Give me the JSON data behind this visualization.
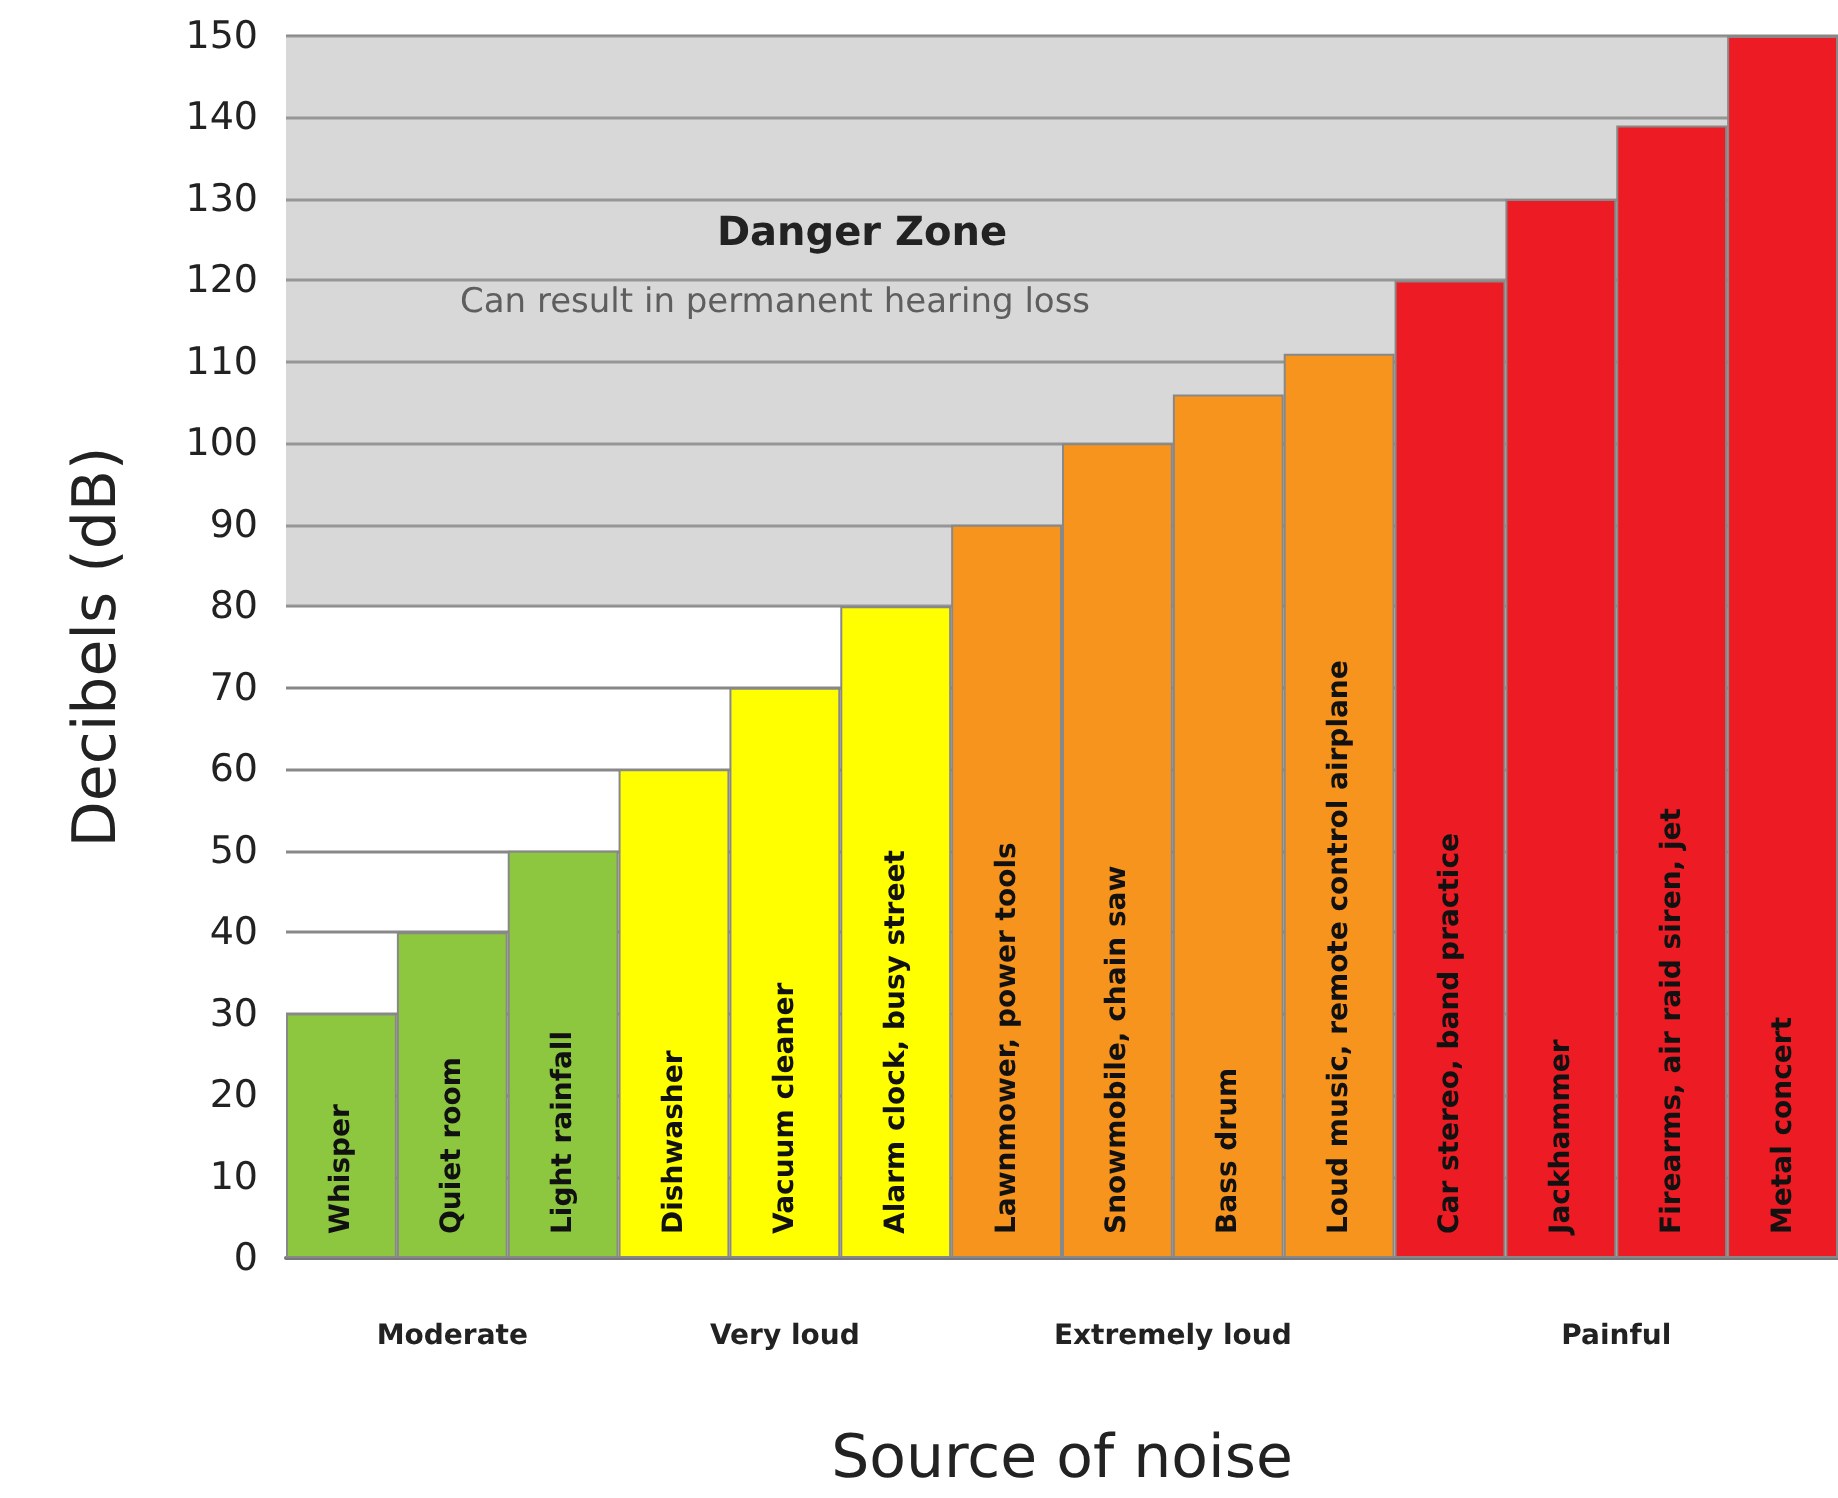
{
  "chart_data": {
    "type": "bar",
    "xlabel": "Source of noise",
    "ylabel": "Decibels (dB)",
    "categories": [
      "Whisper",
      "Quiet room",
      "Light rainfall",
      "Dishwasher",
      "Vacuum cleaner",
      "Alarm clock, busy street",
      "Lawnmower, power tools",
      "Snowmobile, chain saw",
      "Bass drum",
      "Loud music, remote control airplane",
      "Car stereo, band practice",
      "Jackhammer",
      "Firearms, air raid siren, jet",
      "Metal concert"
    ],
    "values": [
      30,
      40,
      50,
      60,
      70,
      80,
      90,
      100,
      106,
      111,
      120,
      130,
      139,
      150
    ],
    "colors": [
      "#8dc63f",
      "#8dc63f",
      "#8dc63f",
      "#ffff00",
      "#ffff00",
      "#ffff00",
      "#f7941d",
      "#f7941d",
      "#f7941d",
      "#f7941d",
      "#ed1c24",
      "#ed1c24",
      "#ed1c24",
      "#ed1c24"
    ],
    "ylim": [
      0,
      150
    ],
    "yticks": [
      0,
      10,
      20,
      30,
      40,
      50,
      60,
      70,
      80,
      90,
      100,
      110,
      120,
      130,
      140,
      150
    ],
    "grid": "y",
    "tick_labels": "y",
    "bands": [
      {
        "axis": "y",
        "from": 80,
        "to": 150,
        "label": "Danger Zone",
        "color": "#a8a8a8"
      }
    ],
    "annotations": [
      "Can result in permanent hearing loss",
      "Moderate",
      "Very loud",
      "Extremely loud",
      "Painful"
    ]
  }
}
